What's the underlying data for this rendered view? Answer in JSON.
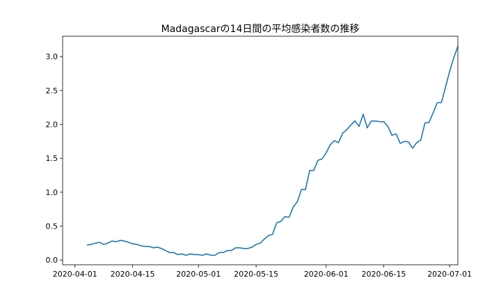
{
  "chart_data": {
    "type": "line",
    "title": "Madagascarの14日間の平均感染者数の推移",
    "xlabel": "",
    "ylabel": "",
    "x_start": "2020-04-04",
    "x_ticks": [
      "2020-04-01",
      "2020-04-15",
      "2020-05-01",
      "2020-05-15",
      "2020-06-01",
      "2020-06-15",
      "2020-07-01"
    ],
    "xlim": [
      "2020-03-29",
      "2020-07-03"
    ],
    "y_ticks": [
      "0.0",
      "0.5",
      "1.0",
      "1.5",
      "2.0",
      "2.5",
      "3.0"
    ],
    "ylim": [
      -0.07,
      3.3
    ],
    "grid": false,
    "line_color": "#1f77b4",
    "series": [
      {
        "values": [
          0.22,
          0.23,
          0.25,
          0.26,
          0.23,
          0.25,
          0.28,
          0.27,
          0.29,
          0.28,
          0.26,
          0.24,
          0.23,
          0.21,
          0.2,
          0.2,
          0.18,
          0.19,
          0.17,
          0.14,
          0.11,
          0.11,
          0.08,
          0.09,
          0.07,
          0.09,
          0.08,
          0.08,
          0.07,
          0.09,
          0.07,
          0.07,
          0.11,
          0.11,
          0.14,
          0.14,
          0.18,
          0.18,
          0.17,
          0.17,
          0.19,
          0.23,
          0.25,
          0.31,
          0.36,
          0.38,
          0.55,
          0.57,
          0.64,
          0.63,
          0.78,
          0.86,
          1.04,
          1.04,
          1.32,
          1.32,
          1.47,
          1.49,
          1.58,
          1.7,
          1.76,
          1.73,
          1.87,
          1.92,
          1.99,
          2.05,
          1.97,
          2.15,
          1.95,
          2.05,
          2.05,
          2.04,
          2.04,
          1.97,
          1.84,
          1.86,
          1.72,
          1.75,
          1.74,
          1.65,
          1.73,
          1.77,
          2.02,
          2.03,
          2.17,
          2.32,
          2.32,
          2.55,
          2.78,
          2.98,
          3.15
        ]
      }
    ]
  }
}
